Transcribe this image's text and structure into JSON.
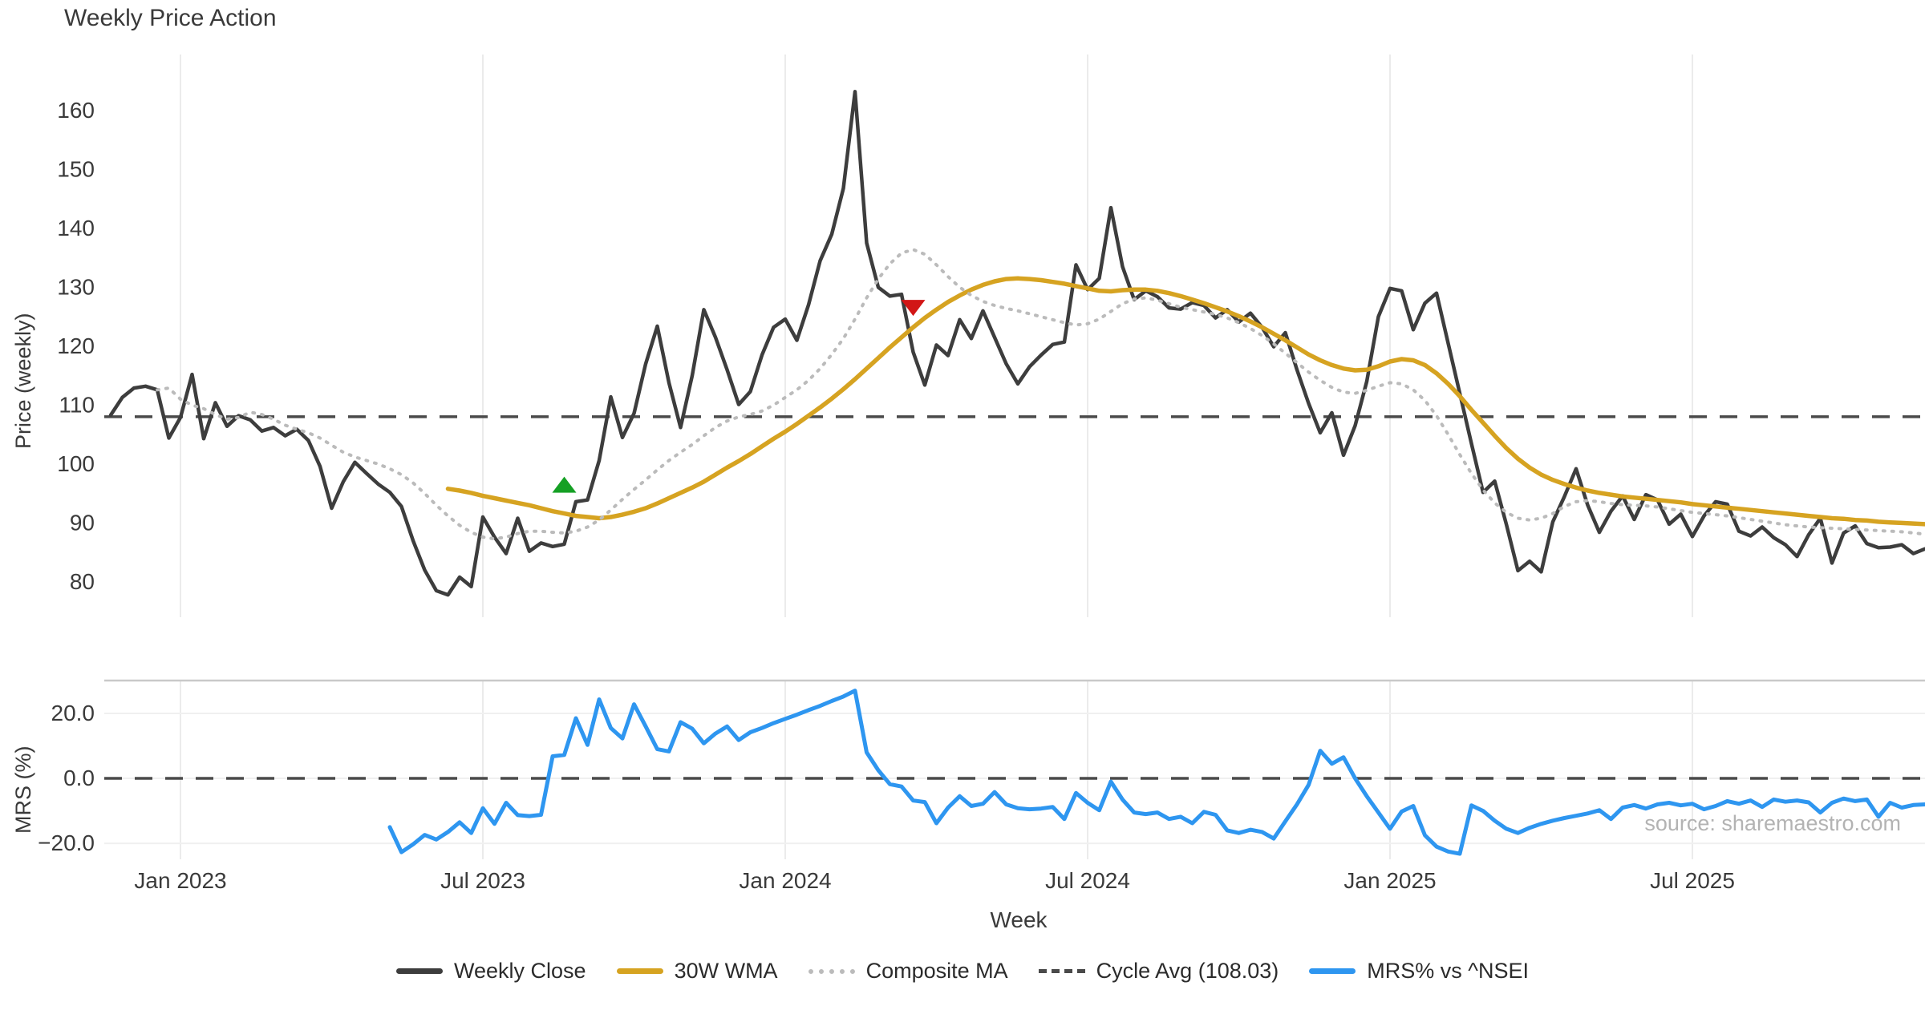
{
  "title": "Weekly Price Action",
  "watermark": "source: sharemaestro.com",
  "legend": {
    "weekly_close": "Weekly Close",
    "wma": "30W WMA",
    "composite": "Composite MA",
    "cycle_avg": "Cycle Avg (108.03)",
    "mrs": "MRS% vs ^NSEI"
  },
  "chart_data": {
    "type": "line",
    "title": "Weekly Price Action",
    "x_axis": {
      "label": "Week",
      "n_points": 157,
      "start_week": "2022-11-21",
      "frequency": "weekly",
      "tick_indices": [
        6,
        32,
        58,
        84,
        110,
        136
      ],
      "tick_labels": [
        "Jan 2023",
        "Jul 2023",
        "Jan 2024",
        "Jul 2024",
        "Jan 2025",
        "Jul 2025"
      ]
    },
    "panels": [
      {
        "name": "price",
        "ylabel": "Price (weekly)",
        "ylim": [
          74.0,
          169.5
        ],
        "yticks": [
          80,
          90,
          100,
          110,
          120,
          130,
          140,
          150,
          160
        ],
        "grid": "vertical-months",
        "reference_line": {
          "label": "Cycle Avg (108.03)",
          "value": 108.03,
          "style": "dashed",
          "color": "#4a4a4a"
        },
        "markers": [
          {
            "name": "buy-signal",
            "shape": "triangle-up",
            "index": 39,
            "value": 96.5,
            "color": "#15a024"
          },
          {
            "name": "sell-signal",
            "shape": "triangle-down",
            "index": 69,
            "value": 126.5,
            "color": "#d21616"
          }
        ],
        "series": [
          {
            "name": "Weekly Close",
            "color": "#3d3d3d",
            "width": 4.5,
            "style": "solid",
            "values": [
              108.3,
              111.3,
              112.9,
              113.2,
              112.6,
              104.4,
              107.9,
              115.2,
              104.3,
              110.4,
              106.4,
              108.2,
              107.5,
              105.6,
              106.2,
              104.8,
              105.9,
              104.0,
              99.6,
              92.5,
              97.0,
              100.3,
              98.4,
              96.6,
              95.2,
              92.8,
              87.0,
              82.0,
              78.5,
              77.8,
              80.8,
              79.2,
              91.0,
              87.6,
              84.8,
              90.8,
              85.2,
              86.6,
              86.0,
              86.4,
              93.6,
              93.9,
              100.6,
              111.4,
              104.5,
              108.6,
              117.0,
              123.4,
              113.8,
              106.2,
              115.0,
              126.2,
              121.5,
              116.0,
              110.1,
              112.3,
              118.5,
              123.2,
              124.6,
              121.0,
              127.0,
              134.5,
              139.0,
              146.8,
              163.2,
              137.5,
              130.0,
              128.5,
              128.8,
              119.0,
              113.4,
              120.2,
              118.4,
              124.5,
              121.3,
              126.0,
              121.5,
              117.0,
              113.6,
              116.5,
              118.5,
              120.3,
              120.7,
              133.8,
              129.6,
              131.5,
              143.5,
              133.5,
              127.9,
              129.4,
              128.4,
              126.5,
              126.3,
              127.4,
              126.9,
              124.8,
              126.2,
              124.1,
              125.6,
              123.2,
              119.9,
              122.3,
              116.0,
              110.3,
              105.3,
              108.7,
              101.5,
              106.5,
              114.0,
              125.0,
              129.8,
              129.4,
              122.8,
              127.3,
              129.0,
              120.5,
              112.0,
              103.5,
              95.2,
              97.1,
              89.8,
              81.9,
              83.5,
              81.7,
              90.2,
              94.5,
              99.2,
              93.0,
              88.4,
              92.0,
              94.6,
              90.6,
              94.8,
              93.9,
              89.8,
              91.5,
              87.7,
              91.2,
              93.6,
              93.2,
              88.6,
              87.8,
              89.3,
              87.5,
              86.3,
              84.3,
              88.0,
              90.8,
              83.2,
              88.3,
              89.5,
              86.5,
              85.8,
              85.9,
              86.3,
              84.8,
              85.6
            ]
          },
          {
            "name": "30W WMA",
            "color": "#d6a321",
            "width": 5.5,
            "style": "solid",
            "values": [
              null,
              null,
              null,
              null,
              null,
              null,
              null,
              null,
              null,
              null,
              null,
              null,
              null,
              null,
              null,
              null,
              null,
              null,
              null,
              null,
              null,
              null,
              null,
              null,
              null,
              null,
              null,
              null,
              null,
              95.8,
              95.5,
              95.1,
              94.6,
              94.2,
              93.8,
              93.4,
              93.0,
              92.5,
              92.0,
              91.6,
              91.2,
              91.0,
              90.8,
              91.0,
              91.4,
              91.9,
              92.5,
              93.3,
              94.2,
              95.1,
              96.0,
              97.0,
              98.2,
              99.4,
              100.5,
              101.7,
              103.0,
              104.3,
              105.5,
              106.8,
              108.2,
              109.6,
              111.1,
              112.7,
              114.4,
              116.2,
              118.0,
              119.8,
              121.5,
              123.2,
              124.8,
              126.2,
              127.5,
              128.6,
              129.6,
              130.4,
              131.0,
              131.4,
              131.5,
              131.4,
              131.2,
              130.9,
              130.6,
              130.2,
              129.8,
              129.4,
              129.3,
              129.5,
              129.6,
              129.6,
              129.4,
              129.0,
              128.5,
              127.9,
              127.3,
              126.6,
              125.9,
              125.1,
              124.2,
              123.2,
              122.1,
              121.0,
              119.8,
              118.6,
              117.6,
              116.8,
              116.2,
              115.9,
              116.0,
              116.6,
              117.4,
              117.8,
              117.6,
              116.8,
              115.4,
              113.6,
              111.5,
              109.2,
              107.0,
              104.8,
              102.7,
              100.9,
              99.4,
              98.2,
              97.3,
              96.6,
              96.0,
              95.5,
              95.1,
              94.8,
              94.5,
              94.3,
              94.1,
              93.9,
              93.7,
              93.5,
              93.2,
              93.0,
              92.8,
              92.6,
              92.4,
              92.2,
              92.0,
              91.8,
              91.6,
              91.4,
              91.2,
              91.0,
              90.8,
              90.7,
              90.5,
              90.4,
              90.2,
              90.1,
              90.0,
              89.9,
              89.8
            ]
          },
          {
            "name": "Composite MA",
            "color": "#bbbbbb",
            "width": 4,
            "style": "dotted",
            "values": [
              null,
              null,
              null,
              null,
              112.6,
              112.9,
              111.0,
              110.0,
              109.4,
              108.4,
              107.6,
              107.9,
              108.8,
              108.4,
              107.6,
              106.6,
              105.9,
              105.3,
              104.4,
              103.2,
              102.0,
              101.2,
              100.6,
              100.0,
              99.2,
              98.2,
              96.8,
              95.0,
              93.0,
              91.2,
              89.6,
              88.4,
              87.6,
              87.3,
              87.6,
              88.2,
              88.6,
              88.6,
              88.4,
              88.3,
              88.6,
              89.3,
              90.5,
              92.2,
              94.0,
              95.7,
              97.3,
              99.0,
              100.6,
              102.0,
              103.3,
              104.8,
              106.2,
              107.3,
              108.0,
              108.4,
              109.0,
              110.0,
              111.3,
              112.6,
              114.2,
              116.2,
              118.6,
              121.3,
              124.6,
              128.2,
              131.4,
              134.0,
              135.8,
              136.4,
              135.6,
              133.8,
              131.8,
              130.0,
              128.6,
              127.6,
              126.9,
              126.4,
              126.0,
              125.5,
              125.0,
              124.5,
              124.0,
              123.6,
              123.8,
              124.6,
              125.9,
              127.2,
              128.0,
              128.2,
              127.8,
              127.2,
              126.6,
              126.2,
              125.8,
              125.4,
              124.8,
              124.0,
              123.0,
              121.8,
              120.4,
              118.8,
              117.2,
              115.6,
              114.2,
              113.0,
              112.2,
              112.0,
              112.5,
              113.2,
              113.8,
              113.6,
              112.6,
              110.8,
              108.2,
              105.0,
              101.6,
              98.4,
              95.6,
              93.4,
              91.8,
              90.8,
              90.5,
              90.8,
              91.6,
              92.8,
              93.6,
              93.8,
              93.6,
              93.3,
              93.1,
              93.0,
              92.9,
              92.7,
              92.4,
              92.1,
              91.8,
              91.6,
              91.4,
              91.2,
              90.9,
              90.6,
              90.3,
              90.0,
              89.7,
              89.5,
              89.3,
              89.2,
              89.1,
              89.0,
              88.9,
              88.8,
              88.7,
              88.6,
              88.5,
              88.3,
              88.1
            ]
          }
        ]
      },
      {
        "name": "mrs",
        "ylabel": "MRS (%)",
        "ylim": [
          -24.9,
          30.1
        ],
        "yticks": [
          -20,
          0,
          20
        ],
        "ytick_labels": [
          "-20.0",
          "0.0",
          "20.0"
        ],
        "grid": "vertical-months-and-horizontal",
        "reference_line": {
          "label": "zero",
          "value": 0.0,
          "style": "dashed",
          "color": "#4a4a4a"
        },
        "series": [
          {
            "name": "MRS% vs ^NSEI",
            "color": "#2e96f0",
            "width": 5,
            "style": "solid",
            "values": [
              null,
              null,
              null,
              null,
              null,
              null,
              null,
              null,
              null,
              null,
              null,
              null,
              null,
              null,
              null,
              null,
              null,
              null,
              null,
              null,
              null,
              null,
              null,
              null,
              -15.0,
              -22.7,
              -20.3,
              -17.4,
              -18.8,
              -16.5,
              -13.5,
              -16.8,
              -9.2,
              -14.0,
              -7.5,
              -11.3,
              -11.6,
              -11.2,
              6.8,
              7.2,
              18.5,
              10.3,
              24.3,
              15.5,
              12.3,
              22.8,
              16.0,
              9.0,
              8.3,
              17.3,
              15.3,
              10.8,
              13.8,
              16.0,
              11.8,
              14.2,
              15.5,
              17.0,
              18.3,
              19.6,
              21.0,
              22.3,
              23.8,
              25.2,
              27.0,
              8.0,
              2.5,
              -1.8,
              -2.5,
              -6.8,
              -7.3,
              -13.8,
              -9.0,
              -5.5,
              -8.5,
              -7.8,
              -4.2,
              -8.0,
              -9.2,
              -9.5,
              -9.3,
              -8.8,
              -12.5,
              -4.5,
              -7.5,
              -9.8,
              -1.0,
              -6.5,
              -10.5,
              -11.0,
              -10.5,
              -12.5,
              -11.8,
              -13.8,
              -10.3,
              -11.2,
              -16.0,
              -16.8,
              -15.8,
              -16.5,
              -18.5,
              -13.2,
              -8.0,
              -2.0,
              8.5,
              4.5,
              6.5,
              0.0,
              -5.5,
              -10.5,
              -15.5,
              -10.2,
              -8.5,
              -17.5,
              -21.0,
              -22.5,
              -23.2,
              -8.3,
              -10.0,
              -13.0,
              -15.5,
              -16.8,
              -15.2,
              -14.0,
              -13.0,
              -12.2,
              -11.5,
              -10.8,
              -9.8,
              -12.5,
              -9.0,
              -8.2,
              -9.3,
              -8.0,
              -7.5,
              -8.3,
              -7.8,
              -9.5,
              -8.5,
              -7.0,
              -7.8,
              -6.8,
              -8.8,
              -6.5,
              -7.2,
              -6.8,
              -7.4,
              -10.5,
              -7.5,
              -6.2,
              -7.0,
              -6.5,
              -11.8,
              -7.5,
              -9.0,
              -8.2,
              -8.0
            ]
          }
        ]
      }
    ],
    "colors": {
      "grid": "#ebebeb",
      "panel_border": "#c9c9c9",
      "tick_text": "#3a3a3a",
      "watermark": "#b3b3b3"
    }
  }
}
